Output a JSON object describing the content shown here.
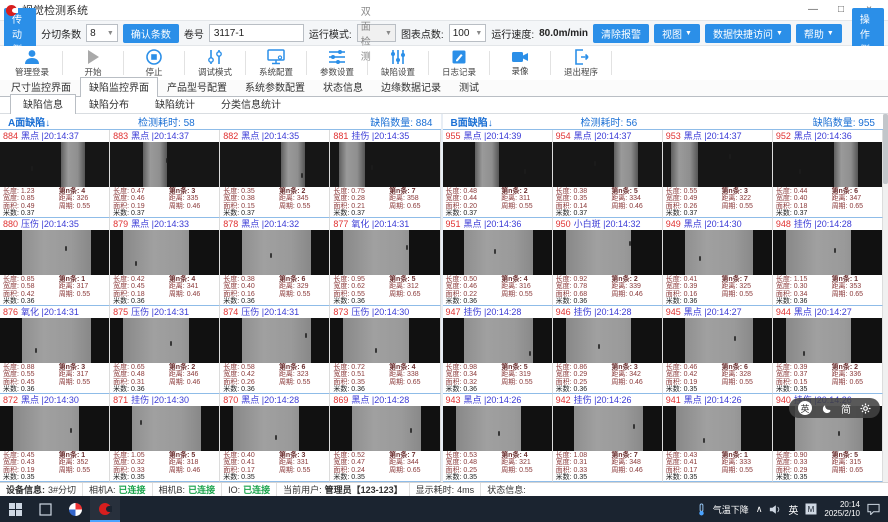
{
  "window": {
    "title": "视觉检测系统",
    "minimize": "—",
    "maximize": "□",
    "close": "×"
  },
  "toolbar": {
    "left_side": "传动侧",
    "slit_label": "分切条数",
    "slit_value": "8",
    "confirm": "确认条数",
    "roll_label": "卷号",
    "roll_value": "3117-1",
    "mode_label": "运行模式:",
    "mode_value": "双面检测",
    "points_label": "图表点数:",
    "points_value": "100",
    "speed_label": "运行速度:",
    "speed_value": "80.0m/min",
    "clear_alarm": "清除报警",
    "view": "视图",
    "quick_data": "数据快捷访问",
    "help": "帮助",
    "right_side": "操作侧"
  },
  "actions": [
    {
      "name": "admin-login",
      "label": "管理登录",
      "icon": "user"
    },
    {
      "name": "start",
      "label": "开始",
      "icon": "play"
    },
    {
      "name": "stop",
      "label": "停止",
      "icon": "stop"
    },
    {
      "name": "debug-mode",
      "label": "调试模式",
      "icon": "tune"
    },
    {
      "name": "system-config",
      "label": "系统配置",
      "icon": "monitor"
    },
    {
      "name": "param-settings",
      "label": "参数设置",
      "icon": "sliders-h"
    },
    {
      "name": "defect-settings",
      "label": "缺陷设置",
      "icon": "sliders-v"
    },
    {
      "name": "log-record",
      "label": "日志记录",
      "icon": "log"
    },
    {
      "name": "record-video",
      "label": "录像",
      "icon": "camera"
    },
    {
      "name": "exit-program",
      "label": "退出程序",
      "icon": "exit"
    }
  ],
  "tabs": {
    "active": 1,
    "items": [
      "尺寸监控界面",
      "缺陷监控界面",
      "产品型号配置",
      "系统参数配置",
      "状态信息",
      "边缘数据记录",
      "测试"
    ]
  },
  "subtabs": {
    "active": 0,
    "items": [
      "缺陷信息",
      "缺陷分布",
      "缺陷统计",
      "分类信息统计"
    ]
  },
  "accent_color": "#2b8fe8",
  "panels": [
    {
      "title": "A面缺陷↓",
      "time_label": "检测耗时:",
      "time": "58",
      "count_label": "缺陷数量:",
      "count": "884",
      "cells": [
        {
          "id": "884",
          "type": "黑点",
          "time": "|20:14:37",
          "l1": "长度: 1.23",
          "l2": "宽度: 0.85",
          "l3": "面积: 0.49",
          "l4": "米数: 0.37",
          "r1": "第n条: 4",
          "r2": "距离: 326",
          "r3": "周期: 0.55",
          "thumb": "d1"
        },
        {
          "id": "883",
          "type": "黑点",
          "time": "|20:14:37",
          "l1": "长度: 0.47",
          "l2": "宽度: 0.46",
          "l3": "面积: 0.19",
          "l4": "米数: 0.37",
          "r1": "第n条: 3",
          "r2": "距离: 335",
          "r3": "周期: 0.46",
          "thumb": "d2"
        },
        {
          "id": "882",
          "type": "黑点",
          "time": "|20:14:35",
          "l1": "长度: 0.35",
          "l2": "宽度: 0.38",
          "l3": "面积: 0.15",
          "l4": "米数: 0.37",
          "r1": "第n条: 2",
          "r2": "距离: 345",
          "r3": "周期: 0.55",
          "thumb": "d1"
        },
        {
          "id": "881",
          "type": "挂伤",
          "time": "|20:14:35",
          "l1": "长度: 0.75",
          "l2": "宽度: 0.28",
          "l3": "面积: 0.21",
          "l4": "米数: 0.37",
          "r1": "第n条: 7",
          "r2": "距离: 358",
          "r3": "周期: 0.65",
          "thumb": "d3"
        },
        {
          "id": "880",
          "type": "压伤",
          "time": "|20:14:35",
          "l1": "长度: 0.85",
          "l2": "宽度: 0.58",
          "l3": "面积: 0.42",
          "l4": "米数: 0.36",
          "r1": "第n条: 1",
          "r2": "距离: 317",
          "r3": "周期: 0.55",
          "thumb": "l1"
        },
        {
          "id": "879",
          "type": "黑点",
          "time": "|20:14:33",
          "l1": "长度: 0.42",
          "l2": "宽度: 0.45",
          "l3": "面积: 0.18",
          "l4": "米数: 0.36",
          "r1": "第n条: 4",
          "r2": "距离: 341",
          "r3": "周期: 0.46",
          "thumb": "l2"
        },
        {
          "id": "878",
          "type": "黑点",
          "time": "|20:14:32",
          "l1": "长度: 0.38",
          "l2": "宽度: 0.40",
          "l3": "面积: 0.16",
          "l4": "米数: 0.36",
          "r1": "第n条: 6",
          "r2": "距离: 329",
          "r3": "周期: 0.55",
          "thumb": "l1"
        },
        {
          "id": "877",
          "type": "氧化",
          "time": "|20:14:31",
          "l1": "长度: 0.95",
          "l2": "宽度: 0.62",
          "l3": "面积: 0.55",
          "l4": "米数: 0.36",
          "r1": "第n条: 5",
          "r2": "距离: 312",
          "r3": "周期: 0.65",
          "thumb": "l2"
        },
        {
          "id": "876",
          "type": "氧化",
          "time": "|20:14:31",
          "l1": "长度: 0.88",
          "l2": "宽度: 0.55",
          "l3": "面积: 0.45",
          "l4": "米数: 0.36",
          "r1": "第n条: 3",
          "r2": "距离: 317",
          "r3": "周期: 0.55",
          "thumb": "l1"
        },
        {
          "id": "875",
          "type": "压伤",
          "time": "|20:14:31",
          "l1": "长度: 0.65",
          "l2": "宽度: 0.48",
          "l3": "面积: 0.31",
          "l4": "米数: 0.36",
          "r1": "第n条: 2",
          "r2": "距离: 346",
          "r3": "周期: 0.46",
          "thumb": "l2"
        },
        {
          "id": "874",
          "type": "压伤",
          "time": "|20:14:31",
          "l1": "长度: 0.58",
          "l2": "宽度: 0.42",
          "l3": "面积: 0.26",
          "l4": "米数: 0.36",
          "r1": "第n条: 6",
          "r2": "距离: 323",
          "r3": "周期: 0.55",
          "thumb": "l1"
        },
        {
          "id": "873",
          "type": "压伤",
          "time": "|20:14:30",
          "l1": "长度: 0.72",
          "l2": "宽度: 0.51",
          "l3": "面积: 0.35",
          "l4": "米数: 0.36",
          "r1": "第n条: 4",
          "r2": "距离: 338",
          "r3": "周期: 0.65",
          "thumb": "l2"
        },
        {
          "id": "872",
          "type": "黑点",
          "time": "|20:14:30",
          "l1": "长度: 0.45",
          "l2": "宽度: 0.43",
          "l3": "面积: 0.19",
          "l4": "米数: 0.35",
          "r1": "第n条: 1",
          "r2": "距离: 352",
          "r3": "周期: 0.55",
          "thumb": "l2"
        },
        {
          "id": "871",
          "type": "挂伤",
          "time": "|20:14:30",
          "l1": "长度: 1.05",
          "l2": "宽度: 0.32",
          "l3": "面积: 0.33",
          "l4": "米数: 0.35",
          "r1": "第n条: 5",
          "r2": "距离: 318",
          "r3": "周期: 0.46",
          "thumb": "l1"
        },
        {
          "id": "870",
          "type": "黑点",
          "time": "|20:14:28",
          "l1": "长度: 0.40",
          "l2": "宽度: 0.41",
          "l3": "面积: 0.17",
          "l4": "米数: 0.35",
          "r1": "第n条: 3",
          "r2": "距离: 331",
          "r3": "周期: 0.55",
          "thumb": "l2"
        },
        {
          "id": "869",
          "type": "黑点",
          "time": "|20:14:28",
          "l1": "长度: 0.52",
          "l2": "宽度: 0.47",
          "l3": "面积: 0.24",
          "l4": "米数: 0.35",
          "r1": "第n条: 7",
          "r2": "距离: 344",
          "r3": "周期: 0.65",
          "thumb": "l1"
        }
      ]
    },
    {
      "title": "B面缺陷↓",
      "time_label": "检测耗时:",
      "time": "56",
      "count_label": "缺陷数量:",
      "count": "955",
      "cells": [
        {
          "id": "955",
          "type": "黑点",
          "time": "|20:14:39",
          "l1": "长度: 0.48",
          "l2": "宽度: 0.44",
          "l3": "面积: 0.20",
          "l4": "米数: 0.37",
          "r1": "第n条: 2",
          "r2": "距离: 311",
          "r3": "周期: 0.55",
          "thumb": "d2"
        },
        {
          "id": "954",
          "type": "黑点",
          "time": "|20:14:37",
          "l1": "长度: 0.38",
          "l2": "宽度: 0.35",
          "l3": "面积: 0.14",
          "l4": "米数: 0.37",
          "r1": "第n条: 5",
          "r2": "距离: 334",
          "r3": "周期: 0.46",
          "thumb": "d1"
        },
        {
          "id": "953",
          "type": "黑点",
          "time": "|20:14:37",
          "l1": "长度: 0.55",
          "l2": "宽度: 0.49",
          "l3": "面积: 0.26",
          "l4": "米数: 0.37",
          "r1": "第n条: 3",
          "r2": "距离: 322",
          "r3": "周期: 0.55",
          "thumb": "d3"
        },
        {
          "id": "952",
          "type": "黑点",
          "time": "|20:14:36",
          "l1": "长度: 0.44",
          "l2": "宽度: 0.40",
          "l3": "面积: 0.18",
          "l4": "米数: 0.37",
          "r1": "第n条: 6",
          "r2": "距离: 347",
          "r3": "周期: 0.65",
          "thumb": "d1"
        },
        {
          "id": "951",
          "type": "黑点",
          "time": "|20:14:36",
          "l1": "长度: 0.50",
          "l2": "宽度: 0.46",
          "l3": "面积: 0.22",
          "l4": "米数: 0.36",
          "r1": "第n条: 4",
          "r2": "距离: 316",
          "r3": "周期: 0.55",
          "thumb": "l1"
        },
        {
          "id": "950",
          "type": "小白斑",
          "time": "|20:14:32",
          "l1": "长度: 0.92",
          "l2": "宽度: 0.78",
          "l3": "面积: 0.68",
          "l4": "米数: 0.36",
          "r1": "第n条: 2",
          "r2": "距离: 339",
          "r3": "周期: 0.46",
          "thumb": "l2"
        },
        {
          "id": "949",
          "type": "黑点",
          "time": "|20:14:30",
          "l1": "长度: 0.41",
          "l2": "宽度: 0.39",
          "l3": "面积: 0.16",
          "l4": "米数: 0.36",
          "r1": "第n条: 7",
          "r2": "距离: 325",
          "r3": "周期: 0.55",
          "thumb": "l1"
        },
        {
          "id": "948",
          "type": "挂伤",
          "time": "|20:14:28",
          "l1": "长度: 1.15",
          "l2": "宽度: 0.30",
          "l3": "面积: 0.34",
          "l4": "米数: 0.36",
          "r1": "第n条: 1",
          "r2": "距离: 353",
          "r3": "周期: 0.65",
          "thumb": "l2"
        },
        {
          "id": "947",
          "type": "挂伤",
          "time": "|20:14:28",
          "l1": "长度: 0.98",
          "l2": "宽度: 0.34",
          "l3": "面积: 0.32",
          "l4": "米数: 0.36",
          "r1": "第n条: 5",
          "r2": "距离: 319",
          "r3": "周期: 0.55",
          "thumb": "l1"
        },
        {
          "id": "946",
          "type": "挂伤",
          "time": "|20:14:28",
          "l1": "长度: 0.86",
          "l2": "宽度: 0.29",
          "l3": "面积: 0.25",
          "l4": "米数: 0.36",
          "r1": "第n条: 3",
          "r2": "距离: 342",
          "r3": "周期: 0.46",
          "thumb": "l2"
        },
        {
          "id": "945",
          "type": "黑点",
          "time": "|20:14:27",
          "l1": "长度: 0.46",
          "l2": "宽度: 0.42",
          "l3": "面积: 0.19",
          "l4": "米数: 0.35",
          "r1": "第n条: 6",
          "r2": "距离: 328",
          "r3": "周期: 0.55",
          "thumb": "l1"
        },
        {
          "id": "944",
          "type": "黑点",
          "time": "|20:14:27",
          "l1": "长度: 0.39",
          "l2": "宽度: 0.37",
          "l3": "面积: 0.15",
          "l4": "米数: 0.35",
          "r1": "第n条: 2",
          "r2": "距离: 336",
          "r3": "周期: 0.65",
          "thumb": "l2"
        },
        {
          "id": "943",
          "type": "黑点",
          "time": "|20:14:26",
          "l1": "长度: 0.53",
          "l2": "宽度: 0.48",
          "l3": "面积: 0.25",
          "l4": "米数: 0.35",
          "r1": "第n条: 4",
          "r2": "距离: 321",
          "r3": "周期: 0.55",
          "thumb": "l2"
        },
        {
          "id": "942",
          "type": "挂伤",
          "time": "|20:14:26",
          "l1": "长度: 1.08",
          "l2": "宽度: 0.31",
          "l3": "面积: 0.33",
          "l4": "米数: 0.35",
          "r1": "第n条: 7",
          "r2": "距离: 348",
          "r3": "周期: 0.46",
          "thumb": "l1"
        },
        {
          "id": "941",
          "type": "黑点",
          "time": "|20:14:26",
          "l1": "长度: 0.43",
          "l2": "宽度: 0.41",
          "l3": "面积: 0.17",
          "l4": "米数: 0.35",
          "r1": "第n条: 1",
          "r2": "距离: 333",
          "r3": "周期: 0.55",
          "thumb": "l2"
        },
        {
          "id": "940",
          "type": "挂伤",
          "time": "|20:14:26",
          "l1": "长度: 0.90",
          "l2": "宽度: 0.33",
          "l3": "面积: 0.29",
          "l4": "米数: 0.35",
          "r1": "第n条: 5",
          "r2": "距离: 315",
          "r3": "周期: 0.65",
          "thumb": "l1"
        }
      ]
    }
  ],
  "floatbar": {
    "en": "英",
    "cn": "简"
  },
  "statusbar": {
    "device_label": "设备信息:",
    "device_value": "3#分切",
    "camA_label": "相机A:",
    "camA_value": "已连接",
    "camB_label": "相机B:",
    "camB_value": "已连接",
    "io_label": "IO:",
    "io_value": "已连接",
    "user_label": "当前用户:",
    "user_value": "管理员【123-123】",
    "display_label": "显示耗时:",
    "display_value": "4ms",
    "status_label": "状态信息:"
  },
  "taskbar": {
    "weather": "气温下降",
    "tray_chevron": "∧",
    "lang": "英",
    "time": "20:14",
    "date": "2025/2/10"
  }
}
